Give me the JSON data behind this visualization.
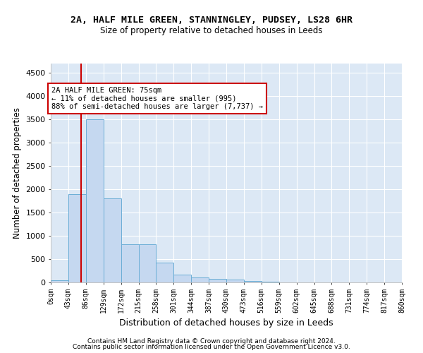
{
  "title1": "2A, HALF MILE GREEN, STANNINGLEY, PUDSEY, LS28 6HR",
  "title2": "Size of property relative to detached houses in Leeds",
  "xlabel": "Distribution of detached houses by size in Leeds",
  "ylabel": "Number of detached properties",
  "bin_labels": [
    "0sqm",
    "43sqm",
    "86sqm",
    "129sqm",
    "172sqm",
    "215sqm",
    "258sqm",
    "301sqm",
    "344sqm",
    "387sqm",
    "430sqm",
    "473sqm",
    "516sqm",
    "559sqm",
    "602sqm",
    "645sqm",
    "688sqm",
    "731sqm",
    "774sqm",
    "817sqm",
    "860sqm"
  ],
  "bin_edges": [
    0,
    43,
    86,
    129,
    172,
    215,
    258,
    301,
    344,
    387,
    430,
    473,
    516,
    559,
    602,
    645,
    688,
    731,
    774,
    817,
    860
  ],
  "bar_values": [
    50,
    1900,
    3500,
    1800,
    820,
    820,
    430,
    170,
    100,
    80,
    60,
    35,
    10,
    5,
    3,
    2,
    2,
    1,
    1,
    0
  ],
  "bar_color": "#c5d8f0",
  "bar_edge_color": "#6baed6",
  "property_size": 75,
  "vline_color": "#cc0000",
  "annotation_text": "2A HALF MILE GREEN: 75sqm\n← 11% of detached houses are smaller (995)\n88% of semi-detached houses are larger (7,737) →",
  "annotation_box_color": "#ffffff",
  "annotation_box_edge": "#cc0000",
  "bg_color": "#dce8f5",
  "grid_color": "#ffffff",
  "footer1": "Contains HM Land Registry data © Crown copyright and database right 2024.",
  "footer2": "Contains public sector information licensed under the Open Government Licence v3.0.",
  "ylim": [
    0,
    4700
  ],
  "yticks": [
    0,
    500,
    1000,
    1500,
    2000,
    2500,
    3000,
    3500,
    4000,
    4500
  ]
}
